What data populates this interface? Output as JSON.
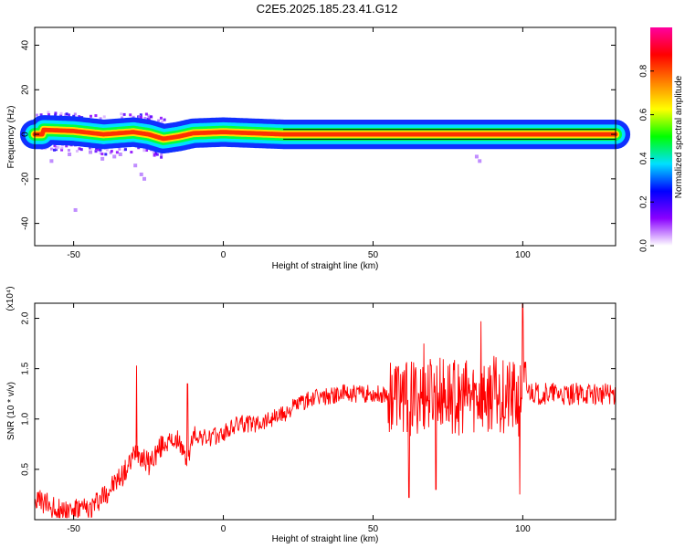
{
  "title": "C2E5.2025.185.23.41.G12",
  "chart_data": [
    {
      "type": "heatmap",
      "xlabel": "Height of straight line (km)",
      "ylabel": "Frequency (Hz)",
      "xlim": [
        -63,
        131
      ],
      "ylim": [
        -50,
        48
      ],
      "xticks": [
        -50,
        0,
        50,
        100
      ],
      "yticks": [
        -40,
        -20,
        0,
        20,
        40
      ],
      "colorbar": {
        "label": "Normalized spectral amplitude",
        "range": [
          0,
          1
        ],
        "ticks": [
          "0.0",
          "0.2",
          "0.4",
          "0.6",
          "0.8"
        ],
        "colors": [
          "#ffffff",
          "#8a00ff",
          "#0000ff",
          "#00e0ff",
          "#00ff00",
          "#ffff00",
          "#ff8000",
          "#ff0000",
          "#ff00a0"
        ]
      },
      "ridge": {
        "description_x": [
          -60,
          -50,
          -40,
          -30,
          -25,
          -20,
          -15,
          -10,
          0,
          10,
          20,
          40,
          60,
          80,
          100,
          131
        ],
        "frequency": [
          2,
          1.5,
          0,
          1,
          0,
          -2,
          -1,
          0.5,
          1,
          0.5,
          0,
          0,
          0,
          0,
          0,
          0
        ]
      }
    },
    {
      "type": "line",
      "xlabel": "Height of straight line (km)",
      "ylabel": "SNR (10 * v/v)",
      "yscale_label": "(x10⁴)",
      "xlim": [
        -63,
        131
      ],
      "ylim": [
        0,
        2.15
      ],
      "xticks": [
        -50,
        0,
        50,
        100
      ],
      "yticks": [
        0.5,
        1.0,
        1.5,
        2.0
      ],
      "ytick_labels": [
        "0.5",
        "1.0",
        "1.5",
        "2.0"
      ],
      "series_color": "#ff0000",
      "trend": {
        "x": [
          -63,
          -55,
          -45,
          -38,
          -32,
          -29,
          -25,
          -20,
          -15,
          -12,
          -10,
          -5,
          0,
          5,
          10,
          15,
          20,
          25,
          30,
          40,
          50,
          55,
          60,
          62,
          70,
          80,
          90,
          95,
          99,
          100,
          105,
          110,
          120,
          131
        ],
        "y": [
          0.2,
          0.1,
          0.1,
          0.3,
          0.5,
          0.7,
          0.55,
          0.75,
          0.8,
          0.55,
          0.85,
          0.8,
          0.85,
          0.95,
          0.95,
          1.0,
          1.05,
          1.15,
          1.2,
          1.25,
          1.25,
          1.25,
          1.25,
          1.2,
          1.25,
          1.2,
          1.25,
          1.2,
          1.2,
          1.3,
          1.25,
          1.25,
          1.25,
          1.25
        ]
      },
      "spikes": [
        {
          "x": -29,
          "y": 1.53
        },
        {
          "x": -12,
          "y": 1.35
        },
        {
          "x": 62,
          "y": 0.22
        },
        {
          "x": 67,
          "y": 1.75
        },
        {
          "x": 71,
          "y": 0.3
        },
        {
          "x": 86,
          "y": 1.97
        },
        {
          "x": 99,
          "y": 0.25
        },
        {
          "x": 100,
          "y": 2.15
        }
      ]
    }
  ]
}
